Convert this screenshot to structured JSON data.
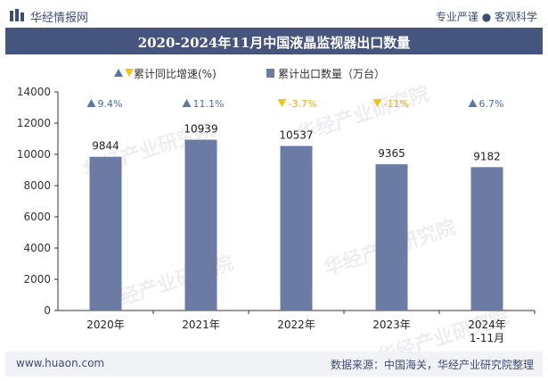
{
  "header": {
    "brand": "华经情报网",
    "slogan": "专业严谨 ● 客观科学"
  },
  "watermark_text": "华经产业研究院",
  "chart_data": {
    "type": "bar",
    "title": "2020-2024年11月中国液晶监视器出口数量",
    "categories": [
      "2020年",
      "2021年",
      "2022年",
      "2023年",
      "2024年\n1-11月"
    ],
    "series": [
      {
        "name": "累计出口数量（万台）",
        "values": [
          9844,
          10939,
          10537,
          9365,
          9182
        ]
      },
      {
        "name": "累计同比增速(%)",
        "values": [
          9.4,
          11.1,
          -3.7,
          -11,
          6.7
        ],
        "labels": [
          "9.4%",
          "11.1%",
          "-3.7%",
          "-11%",
          "6.7%"
        ]
      }
    ],
    "ylim": [
      0,
      14000
    ],
    "yticks": [
      0,
      2000,
      4000,
      6000,
      8000,
      10000,
      12000,
      14000
    ],
    "xlabel": "",
    "ylabel": "",
    "legend": "top-center",
    "colors": {
      "bar": "#6b7ba3",
      "up": "#5a77a0",
      "down": "#f0c419",
      "up_text": "#4a6a98",
      "down_text": "#e0b010"
    }
  },
  "footer": {
    "website": "www.huaon.com",
    "source": "数据来源：中国海关，华经产业研究院整理"
  }
}
